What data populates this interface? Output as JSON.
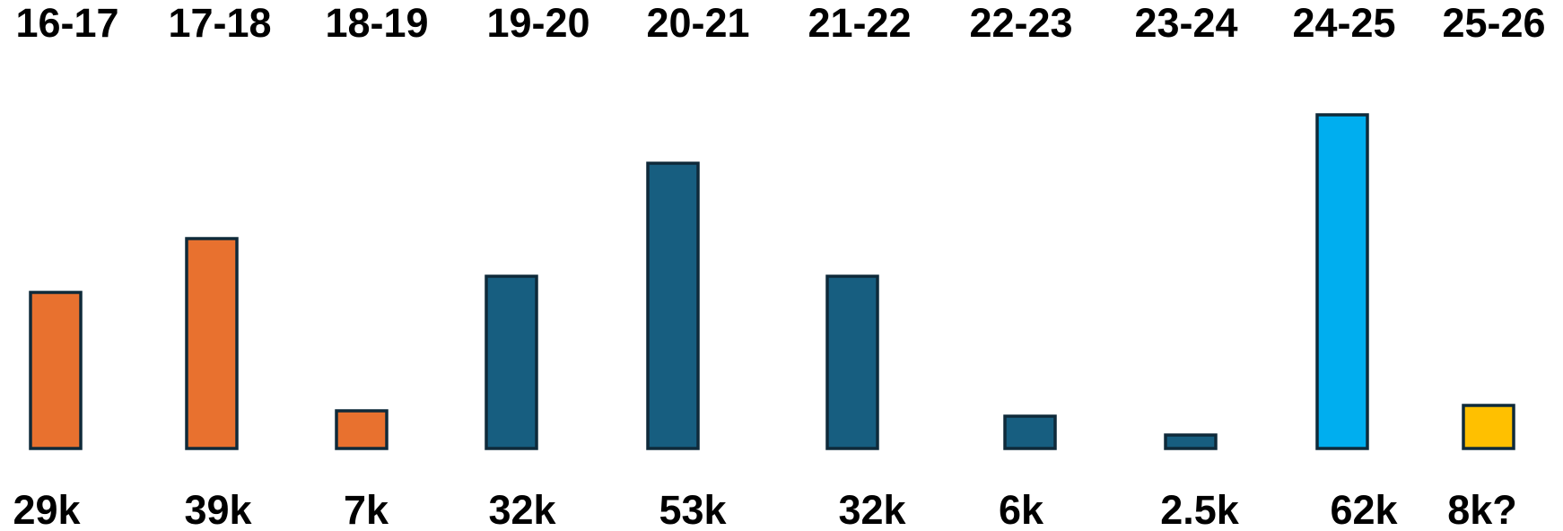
{
  "chart_data": {
    "type": "bar",
    "categories": [
      "16-17",
      "17-18",
      "18-19",
      "19-20",
      "20-21",
      "21-22",
      "22-23",
      "23-24",
      "24-25",
      "25-26"
    ],
    "values": [
      29,
      39,
      7,
      32,
      53,
      32,
      6,
      2.5,
      62,
      8
    ],
    "value_labels": [
      "29k",
      "39k",
      "7k",
      "32k",
      "53k",
      "32k",
      "6k",
      "2.5k",
      "62k",
      "8k?"
    ],
    "bar_colors": [
      "#E8712F",
      "#E8712F",
      "#E8712F",
      "#175E80",
      "#175E80",
      "#175E80",
      "#175E80",
      "#175E80",
      "#00AEEF",
      "#FFC000"
    ],
    "category_position": "top",
    "value_label_position": "bottom",
    "grid": false,
    "legend": "none"
  }
}
